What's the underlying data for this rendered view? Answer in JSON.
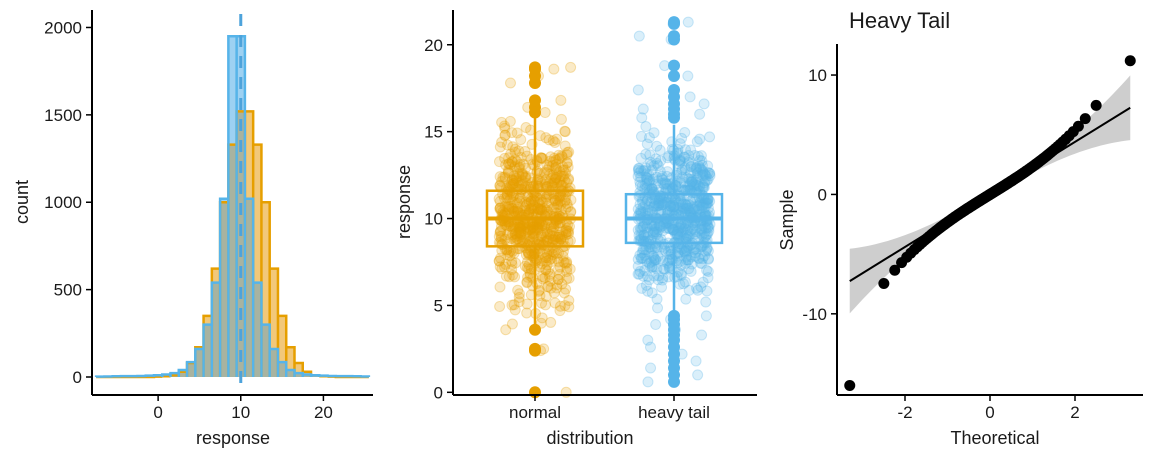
{
  "chart_data": [
    {
      "type": "histogram",
      "xlabel": "response",
      "ylabel": "count",
      "xlim": [
        -8,
        26
      ],
      "ylim": [
        0,
        2100
      ],
      "x_ticks": [
        0,
        10,
        20
      ],
      "y_ticks": [
        0,
        500,
        1000,
        1500,
        2000
      ],
      "bin_width": 1,
      "bin_edges_start": -7.5,
      "mean_line": 10,
      "series": [
        {
          "name": "normal",
          "color": "#E69F00",
          "fill": "#F2C87A",
          "values": [
            0,
            0,
            0,
            0,
            0,
            0,
            0,
            2,
            4,
            10,
            30,
            80,
            170,
            350,
            620,
            1000,
            1330,
            1520,
            1520,
            1330,
            1000,
            620,
            350,
            170,
            80,
            30,
            10,
            4,
            2,
            0,
            0,
            0,
            0
          ]
        },
        {
          "name": "heavy tail",
          "color": "#56B4E9",
          "fill": "#9DD1F2",
          "values": [
            2,
            3,
            4,
            5,
            5,
            6,
            8,
            10,
            14,
            22,
            40,
            85,
            160,
            300,
            540,
            1020,
            1950,
            1950,
            1020,
            540,
            300,
            160,
            85,
            40,
            22,
            14,
            10,
            8,
            6,
            5,
            5,
            4,
            3
          ]
        }
      ]
    },
    {
      "type": "boxplot_jitter",
      "xlabel": "distribution",
      "ylabel": "response",
      "categories": [
        "normal",
        "heavy tail"
      ],
      "ylim": [
        -0.5,
        22
      ],
      "y_ticks": [
        0,
        5,
        10,
        15,
        20
      ],
      "colors": [
        "#E69F00",
        "#56B4E9"
      ],
      "boxes": [
        {
          "name": "normal",
          "q1": 8.4,
          "median": 10.0,
          "q3": 11.6,
          "whisker_low": 3.5,
          "whisker_high": 15.8,
          "outliers": [
            0,
            2.4,
            2.5,
            3.6,
            16.1,
            16.4,
            16.8,
            17.8,
            18.2,
            18.6,
            18.7
          ]
        },
        {
          "name": "heavy tail",
          "q1": 8.6,
          "median": 10.0,
          "q3": 11.4,
          "whisker_low": 4.6,
          "whisker_high": 15.4,
          "outliers": [
            0.6,
            1.0,
            1.4,
            1.8,
            2.2,
            2.6,
            3.0,
            3.3,
            3.6,
            3.9,
            4.2,
            4.4,
            15.8,
            16.0,
            16.3,
            16.6,
            17.0,
            17.4,
            18.2,
            18.8,
            20.3,
            20.5,
            21.2,
            21.3
          ]
        }
      ]
    },
    {
      "type": "scatter",
      "title": "Heavy Tail",
      "xlabel": "Theoretical",
      "ylabel": "Sample",
      "xlim": [
        -3.6,
        3.6
      ],
      "ylim": [
        -16.8,
        12.6
      ],
      "x_ticks": [
        -2,
        0,
        2
      ],
      "y_ticks": [
        -10,
        0,
        10
      ],
      "ref_line": {
        "intercept": 0,
        "slope": 2.2
      },
      "extreme_points": [
        {
          "x": -3.3,
          "y": -16.0
        },
        {
          "x": 3.3,
          "y": 11.2
        }
      ]
    }
  ]
}
